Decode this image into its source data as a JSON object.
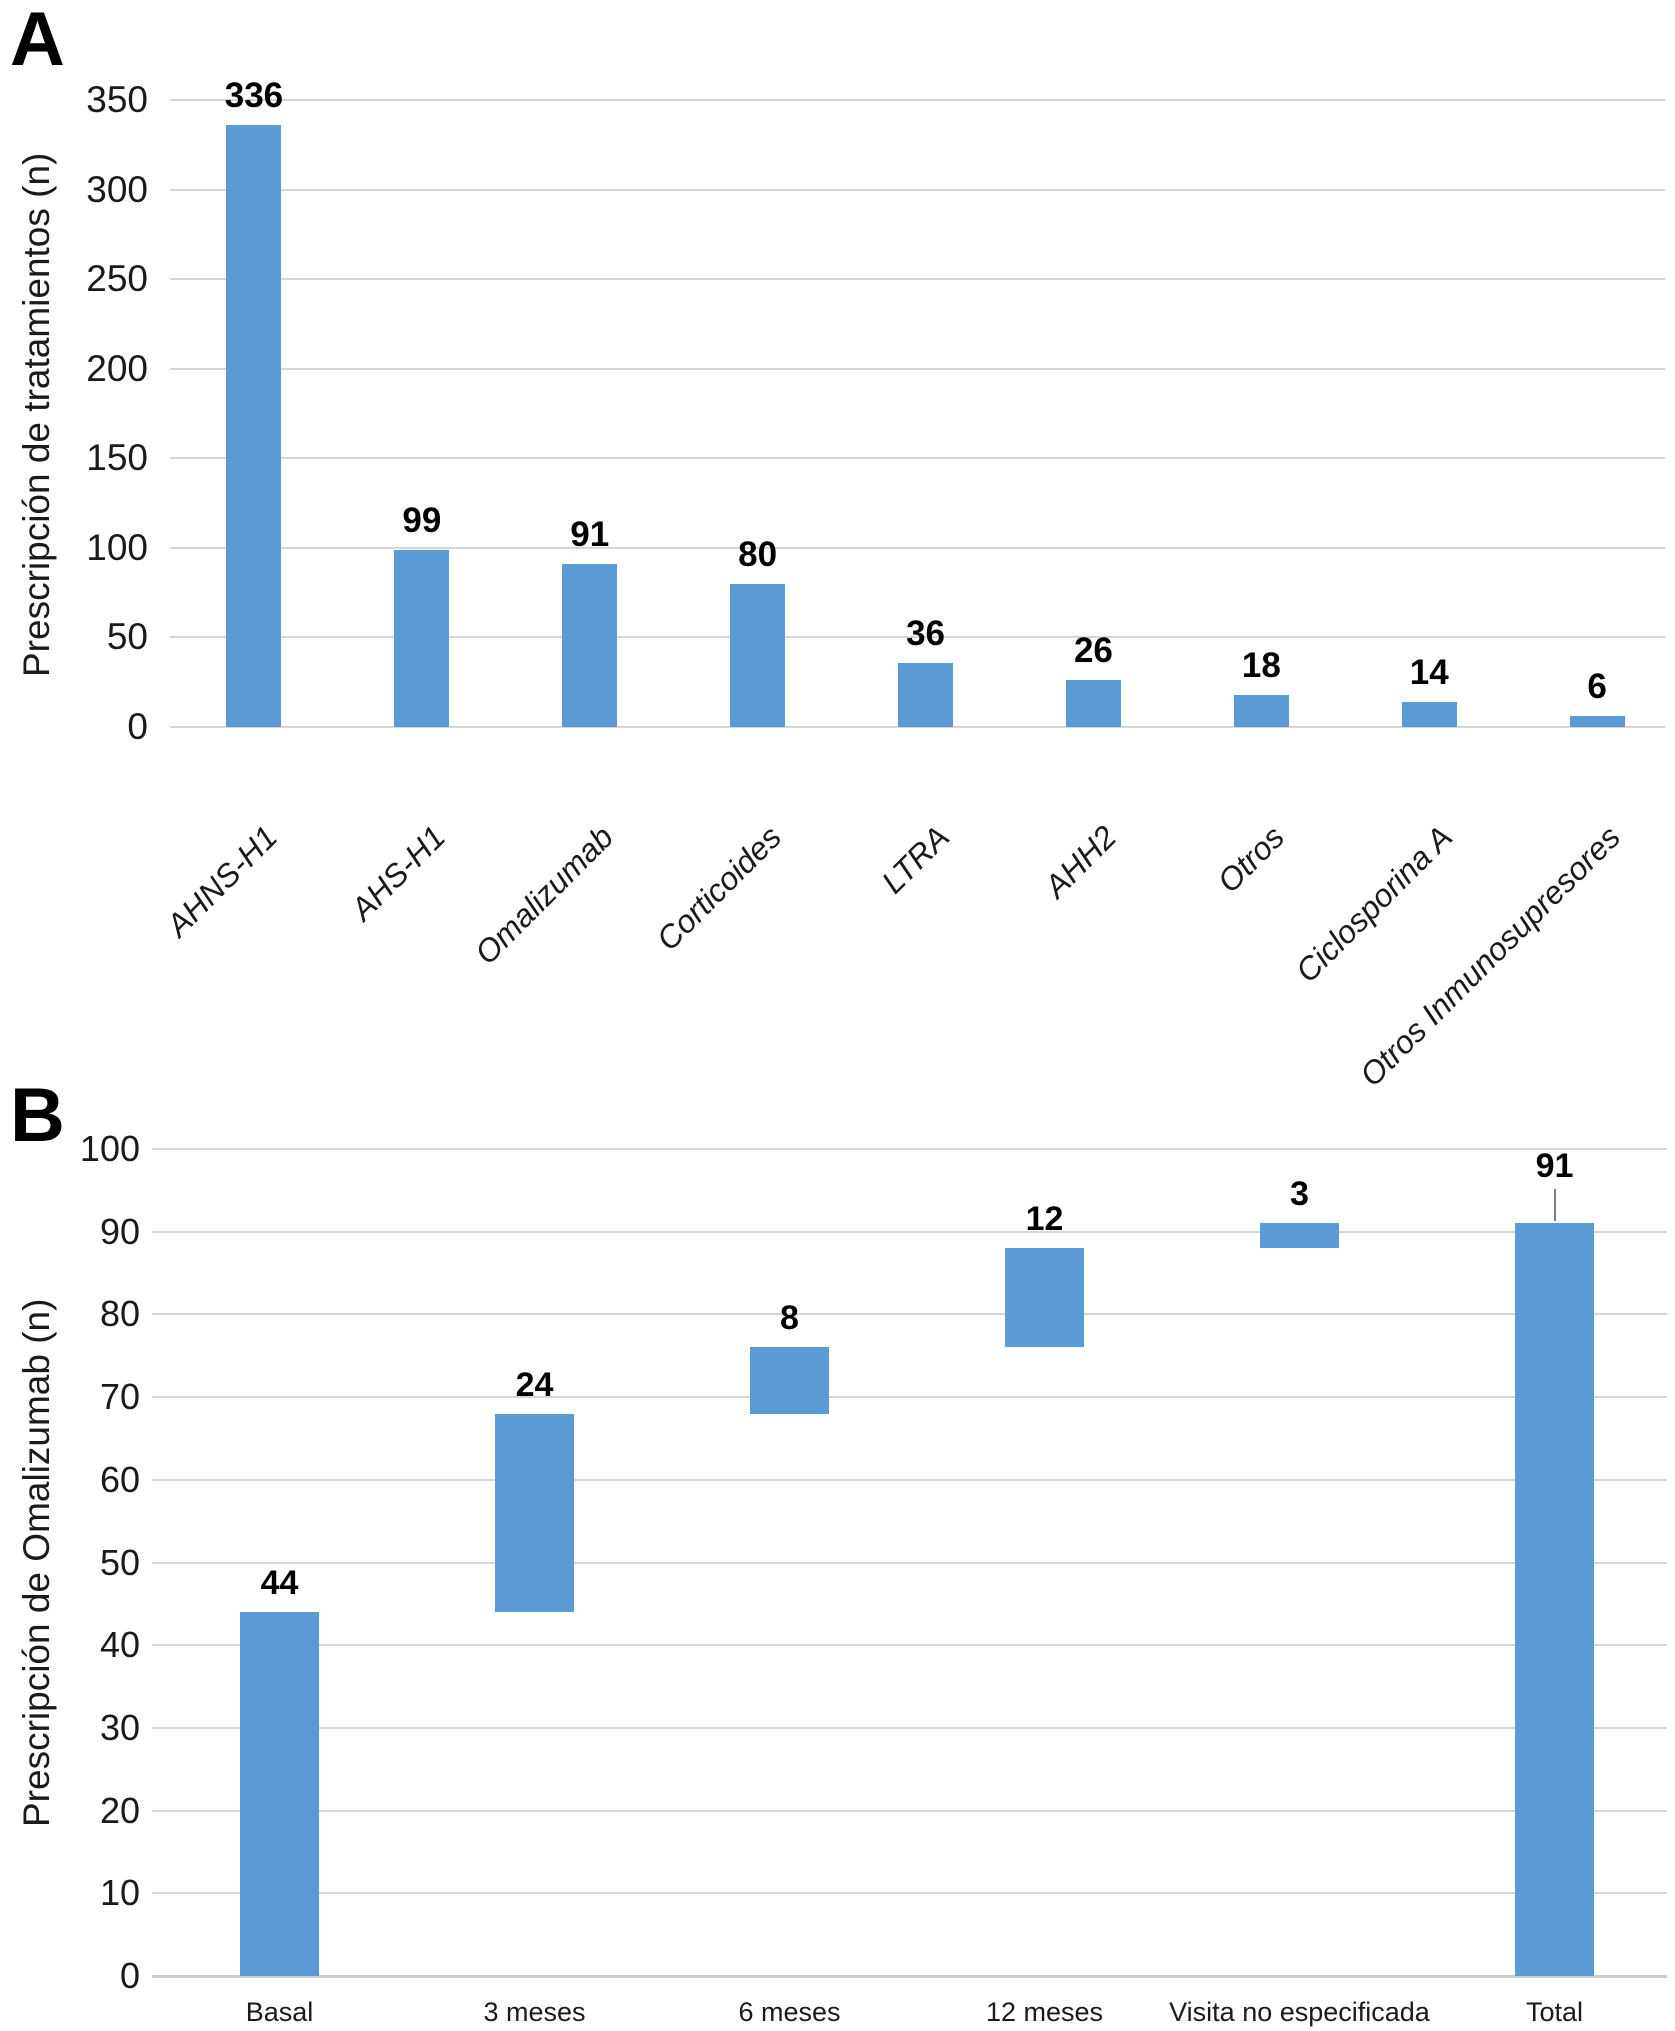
{
  "figure": {
    "background_color": "#ffffff",
    "panels": [
      {
        "label": "A",
        "ylabel": "Prescripción de tratamientos (n)"
      },
      {
        "label": "B",
        "ylabel": "Prescripción de Omalizumab (n)"
      }
    ]
  },
  "chart_data": [
    {
      "type": "bar",
      "panel": "A",
      "title": "",
      "xlabel": "",
      "ylabel": "Prescripción de tratamientos (n)",
      "categories": [
        "AHNS-H1",
        "AHS-H1",
        "Omalizumab",
        "Corticoides",
        "LTRA",
        "AHH2",
        "Otros",
        "Ciclosporina A",
        "Otros Inmunosupresores"
      ],
      "values": [
        336,
        99,
        91,
        80,
        36,
        26,
        18,
        14,
        6
      ],
      "data_labels": [
        "336",
        "99",
        "91",
        "80",
        "36",
        "26",
        "18",
        "14",
        "6"
      ],
      "ylim": [
        0,
        350
      ],
      "ytick_step": 50,
      "grid": true,
      "legend": false,
      "bar_color": "#5B9BD5",
      "gridline_color": "#D6D6D6",
      "category_label_style": "rotated-45-italic"
    },
    {
      "type": "waterfall",
      "panel": "B",
      "title": "",
      "xlabel": "",
      "ylabel": "Prescripción de Omalizumab (n)",
      "categories": [
        "Basal",
        "3 meses",
        "6 meses",
        "12 meses",
        "Visita no especificada",
        "Total"
      ],
      "segments": [
        {
          "category": "Basal",
          "start": 0,
          "end": 44,
          "label": "44"
        },
        {
          "category": "3 meses",
          "start": 44,
          "end": 68,
          "label": "24"
        },
        {
          "category": "6 meses",
          "start": 68,
          "end": 76,
          "label": "8"
        },
        {
          "category": "12 meses",
          "start": 76,
          "end": 88,
          "label": "12"
        },
        {
          "category": "Visita no especificada",
          "start": 88,
          "end": 91,
          "label": "3"
        },
        {
          "category": "Total",
          "start": 0,
          "end": 91,
          "label": "91",
          "leader_line": true
        }
      ],
      "ylim": [
        0,
        100
      ],
      "ytick_step": 10,
      "grid": true,
      "legend": false,
      "bar_color": "#5B9BD5",
      "gridline_color": "#D6D6D6",
      "category_label_style": "horizontal"
    }
  ]
}
